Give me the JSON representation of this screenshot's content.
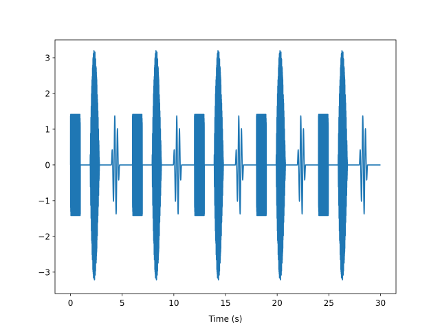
{
  "chart_data": {
    "type": "line",
    "title": "",
    "xlabel": "Time (s)",
    "ylabel": "",
    "xlim": [
      -1.5,
      31.5
    ],
    "ylim": [
      -3.6,
      3.5
    ],
    "xticks": [
      0,
      5,
      10,
      15,
      20,
      25,
      30
    ],
    "yticks": [
      -3,
      -2,
      -1,
      0,
      1,
      2,
      3
    ],
    "grid": false,
    "line_color": "#1f77b4",
    "period": 6.0,
    "repeats": 5,
    "x_range": [
      0,
      30
    ],
    "envelopes": [
      {
        "shape": "flat",
        "x": [
          0.0,
          0.95
        ],
        "amplitude": 1.42,
        "cycles": 60
      },
      {
        "shape": "chirp_burst",
        "x": [
          1.9,
          2.8
        ],
        "amplitude": 3.25,
        "cycles": 40
      },
      {
        "shape": "low_freq_burst",
        "x": [
          3.95,
          4.75
        ],
        "amplitude": 1.42,
        "cycles": 3
      }
    ],
    "series": [
      {
        "x": [
          0,
          30
        ],
        "y": [
          0,
          0
        ]
      }
    ]
  }
}
